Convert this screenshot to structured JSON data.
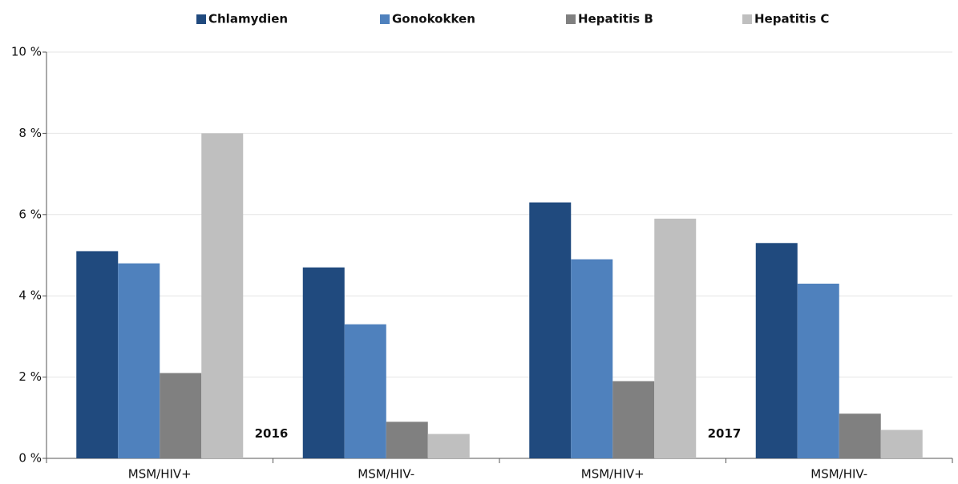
{
  "chart_data": {
    "type": "bar",
    "categories": [
      "MSM/HIV+",
      "MSM/HIV-",
      "MSM/HIV+",
      "MSM/HIV-"
    ],
    "series": [
      {
        "name": "Chlamydien",
        "color": "#204a7e",
        "values": [
          5.1,
          4.7,
          6.3,
          5.3
        ]
      },
      {
        "name": "Gonokokken",
        "color": "#4f81bd",
        "values": [
          4.8,
          3.3,
          4.9,
          4.3
        ]
      },
      {
        "name": "Hepatitis B",
        "color": "#808080",
        "values": [
          2.1,
          0.9,
          1.9,
          1.1
        ]
      },
      {
        "name": "Hepatitis C",
        "color": "#bfbfbf",
        "values": [
          8.0,
          0.6,
          5.9,
          0.7
        ]
      }
    ],
    "annotations": [
      "2016",
      "2017"
    ],
    "ylim": [
      0,
      10
    ],
    "yticks": [
      {
        "value": 0,
        "label": "0 %"
      },
      {
        "value": 2,
        "label": "2 %"
      },
      {
        "value": 4,
        "label": "4 %"
      },
      {
        "value": 6,
        "label": "6 %"
      },
      {
        "value": 8,
        "label": "8 %"
      },
      {
        "value": 10,
        "label": "10 %"
      }
    ],
    "grid": true,
    "legend": "top"
  }
}
